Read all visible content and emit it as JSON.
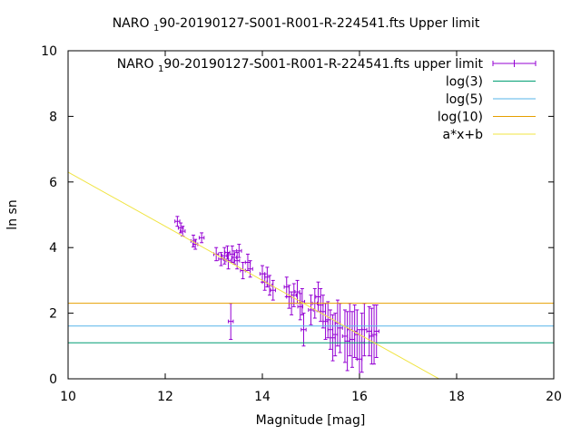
{
  "chart_data": {
    "type": "scatter",
    "title": "NARO ",
    "title_subscript": "1",
    "title_rest": "90-20190127-S001-R001-R-224541.fts Upper limit",
    "xlabel": "Magnitude [mag]",
    "ylabel": "ln sn",
    "xlim": [
      10,
      20
    ],
    "ylim": [
      0,
      10
    ],
    "x_ticks": [
      10,
      12,
      14,
      16,
      18,
      20
    ],
    "y_ticks": [
      0,
      2,
      4,
      6,
      8,
      10
    ],
    "grid": false,
    "legend_position": "top-right",
    "series": [
      {
        "name": "NARO ",
        "name_subscript": "1",
        "name_rest": "90-20190127-S001-R001-R-224541.fts upper limit",
        "kind": "errorbars",
        "color": "#9400d3",
        "x_err": 0.05,
        "points": [
          [
            12.25,
            4.8,
            0.15
          ],
          [
            12.32,
            4.6,
            0.15
          ],
          [
            12.36,
            4.5,
            0.15
          ],
          [
            12.58,
            4.2,
            0.18
          ],
          [
            12.62,
            4.1,
            0.15
          ],
          [
            12.75,
            4.3,
            0.15
          ],
          [
            13.05,
            3.8,
            0.2
          ],
          [
            13.15,
            3.65,
            0.2
          ],
          [
            13.22,
            3.75,
            0.25
          ],
          [
            13.28,
            3.85,
            0.2
          ],
          [
            13.3,
            3.6,
            0.25
          ],
          [
            13.35,
            1.75,
            0.55
          ],
          [
            13.38,
            3.8,
            0.25
          ],
          [
            13.42,
            3.7,
            0.2
          ],
          [
            13.48,
            3.6,
            0.25
          ],
          [
            13.52,
            3.9,
            0.2
          ],
          [
            13.6,
            3.3,
            0.25
          ],
          [
            13.7,
            3.55,
            0.25
          ],
          [
            13.75,
            3.35,
            0.25
          ],
          [
            14.0,
            3.2,
            0.25
          ],
          [
            14.05,
            2.95,
            0.25
          ],
          [
            14.1,
            3.1,
            0.3
          ],
          [
            14.15,
            2.85,
            0.3
          ],
          [
            14.22,
            2.7,
            0.3
          ],
          [
            14.5,
            2.8,
            0.3
          ],
          [
            14.55,
            2.5,
            0.35
          ],
          [
            14.6,
            2.3,
            0.35
          ],
          [
            14.65,
            2.55,
            0.35
          ],
          [
            14.72,
            2.65,
            0.35
          ],
          [
            14.78,
            2.2,
            0.4
          ],
          [
            14.82,
            2.35,
            0.4
          ],
          [
            14.85,
            1.5,
            0.5
          ],
          [
            15.0,
            2.1,
            0.45
          ],
          [
            15.08,
            2.3,
            0.45
          ],
          [
            15.15,
            2.5,
            0.45
          ],
          [
            15.2,
            2.25,
            0.5
          ],
          [
            15.25,
            2.05,
            0.5
          ],
          [
            15.3,
            1.75,
            0.55
          ],
          [
            15.35,
            1.8,
            0.55
          ],
          [
            15.4,
            1.5,
            0.6
          ],
          [
            15.45,
            1.25,
            0.7
          ],
          [
            15.5,
            1.35,
            0.65
          ],
          [
            15.55,
            1.7,
            0.7
          ],
          [
            15.6,
            1.55,
            0.75
          ],
          [
            15.7,
            1.3,
            0.8
          ],
          [
            15.75,
            1.15,
            0.9
          ],
          [
            15.8,
            1.5,
            0.8
          ],
          [
            15.85,
            1.2,
            0.85
          ],
          [
            15.9,
            1.45,
            0.8
          ],
          [
            15.95,
            1.35,
            0.75
          ],
          [
            16.0,
            0.6,
            0.9
          ],
          [
            16.05,
            1.1,
            0.9
          ],
          [
            16.1,
            1.5,
            0.8
          ],
          [
            16.2,
            1.45,
            0.75
          ],
          [
            16.25,
            1.3,
            0.85
          ],
          [
            16.3,
            1.35,
            0.9
          ],
          [
            16.35,
            1.45,
            0.8
          ]
        ]
      },
      {
        "name": "log(3)",
        "kind": "hline",
        "y": 1.0986,
        "color": "#009e73"
      },
      {
        "name": "log(5)",
        "kind": "hline",
        "y": 1.6094,
        "color": "#56b4e9"
      },
      {
        "name": "log(10)",
        "kind": "hline",
        "y": 2.3026,
        "color": "#e69f00"
      },
      {
        "name": "a*x+b",
        "kind": "line",
        "slope": -0.825,
        "intercept": 14.55,
        "color": "#f0e442"
      }
    ]
  }
}
